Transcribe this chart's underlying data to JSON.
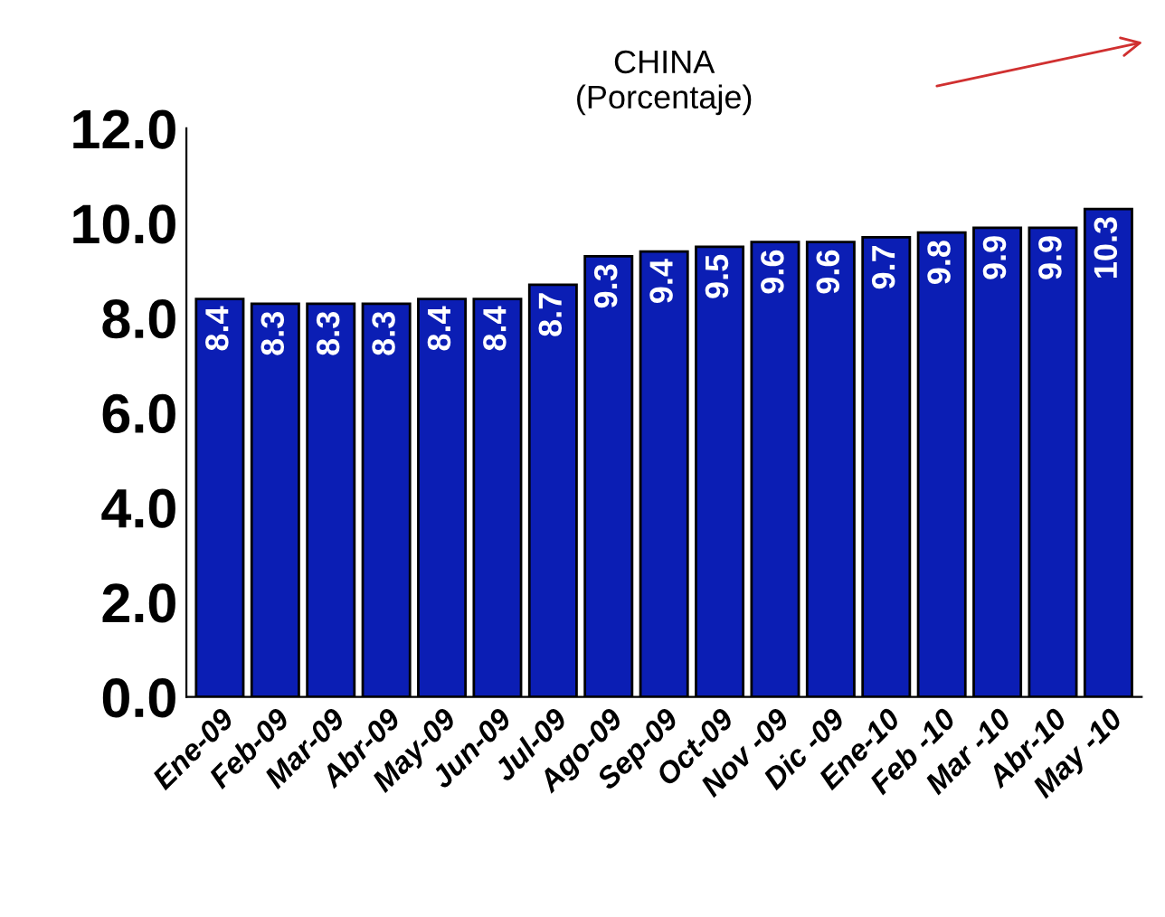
{
  "chart_data": {
    "type": "bar",
    "title": "CHINA\n(Porcentaje)",
    "categories": [
      "Ene-09",
      "Feb-09",
      "Mar-09",
      "Abr-09",
      "May-09",
      "Jun-09",
      "Jul-09",
      "Ago-09",
      "Sep-09",
      "Oct-09",
      "Nov -09",
      "Dic -09",
      "Ene-10",
      "Feb -10",
      "Mar -10",
      "Abr-10",
      "May -10"
    ],
    "values": [
      8.4,
      8.3,
      8.3,
      8.3,
      8.4,
      8.4,
      8.7,
      9.3,
      9.4,
      9.5,
      9.6,
      9.6,
      9.7,
      9.8,
      9.9,
      9.9,
      10.3
    ],
    "color": "#0b1eb4",
    "ylim": [
      0,
      12
    ],
    "yticks": [
      {
        "value": 0,
        "label": "0.0"
      },
      {
        "value": 2,
        "label": "2.0"
      },
      {
        "value": 4,
        "label": "4.0"
      },
      {
        "value": 6,
        "label": "6.0"
      },
      {
        "value": 8,
        "label": "8.0"
      },
      {
        "value": 10,
        "label": "10.0"
      },
      {
        "value": 12,
        "label": "12.0"
      }
    ],
    "grid": false,
    "data_labels": true
  }
}
